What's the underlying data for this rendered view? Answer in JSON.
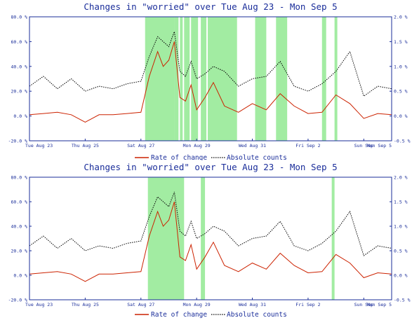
{
  "charts": [
    {
      "title": "Changes in \"worried\" over Tue Aug 23 - Mon Sep  5",
      "legend_rate": "Rate of change",
      "legend_abs": "Absolute counts",
      "x_ticks": [
        "Tue Aug 23",
        "Thu Aug 25",
        "Sat Aug 27",
        "Mon Aug 29",
        "Wed Aug 31",
        "Fri Sep  2",
        "Sun Sep",
        "Mon Sep  5"
      ],
      "y_left_ticks": [
        "80.0 %",
        "60.0 %",
        "40.0 %",
        "20.0 %",
        "0.0 %",
        "-20.0 %"
      ],
      "y_right_ticks": [
        "2.0 %",
        "1.5 %",
        "1.0 %",
        "0.5 %",
        "0.0 %",
        "-0.5 %"
      ]
    },
    {
      "title": "Changes in \"worried\" over Tue Aug 23 - Mon Sep  5",
      "legend_rate": "Rate of change",
      "legend_abs": "Absolute counts",
      "x_ticks": [
        "Tue Aug 23",
        "Thu Aug 25",
        "Sat Aug 27",
        "Mon Aug 29",
        "Wed Aug 31",
        "Fri Sep  2",
        "Sun Sep",
        "Mon Sep  5"
      ],
      "y_left_ticks": [
        "80.0 %",
        "60.0 %",
        "40.0 %",
        "20.0 %",
        "0.0 %",
        "-20.0 %"
      ],
      "y_right_ticks": [
        "2.0 %",
        "1.5 %",
        "1.0 %",
        "0.5 %",
        "0.0 %",
        "-0.5 %"
      ]
    }
  ],
  "colors": {
    "axis": "#1a2d9a",
    "rate": "#cc2200",
    "absolute": "#000000",
    "highlight": "#55dd55"
  },
  "chart_data": [
    {
      "type": "line",
      "title": "Changes in \"worried\" over Tue Aug 23 - Mon Sep  5",
      "x_range": [
        "2011-08-23",
        "2011-09-05"
      ],
      "ylim_left": [
        -20,
        80
      ],
      "ylim_right": [
        -0.5,
        2.0
      ],
      "grid": false,
      "legend": "bottom",
      "series": [
        {
          "name": "Rate of change",
          "axis": "left",
          "unit": "%",
          "x": [
            0,
            0.5,
            1,
            1.5,
            2,
            2.5,
            3,
            3.5,
            4,
            4.3,
            4.6,
            4.8,
            5,
            5.2,
            5.4,
            5.6,
            5.8,
            6,
            6.3,
            6.6,
            7,
            7.5,
            8,
            8.5,
            9,
            9.5,
            10,
            10.5,
            11,
            11.5,
            12,
            12.5,
            13
          ],
          "y": [
            1,
            2,
            3,
            1,
            -5,
            1,
            1,
            2,
            3,
            32,
            52,
            40,
            45,
            60,
            15,
            12,
            25,
            5,
            15,
            27,
            8,
            3,
            10,
            5,
            18,
            8,
            2,
            3,
            17,
            10,
            -2,
            2,
            1
          ]
        },
        {
          "name": "Absolute counts",
          "axis": "right",
          "unit": "%",
          "x": [
            0,
            0.5,
            1,
            1.5,
            2,
            2.5,
            3,
            3.5,
            4,
            4.3,
            4.6,
            4.8,
            5,
            5.2,
            5.4,
            5.6,
            5.8,
            6,
            6.3,
            6.6,
            7,
            7.5,
            8,
            8.5,
            9,
            9.5,
            10,
            10.5,
            11,
            11.5,
            12,
            12.5,
            13
          ],
          "y": [
            0.6,
            0.8,
            0.55,
            0.75,
            0.5,
            0.6,
            0.55,
            0.65,
            0.7,
            1.2,
            1.6,
            1.5,
            1.4,
            1.7,
            0.9,
            0.8,
            1.1,
            0.75,
            0.85,
            1.0,
            0.9,
            0.6,
            0.75,
            0.8,
            1.1,
            0.6,
            0.5,
            0.65,
            0.9,
            1.3,
            0.4,
            0.6,
            0.55
          ]
        }
      ],
      "highlight_bands_days": [
        [
          4.15,
          5.2
        ],
        [
          5.2,
          5.35
        ],
        [
          5.4,
          5.5
        ],
        [
          5.55,
          5.75
        ],
        [
          5.8,
          6.05
        ],
        [
          6.15,
          6.35
        ],
        [
          6.4,
          7.45
        ],
        [
          8.1,
          8.5
        ],
        [
          8.85,
          9.25
        ],
        [
          10.5,
          10.65
        ],
        [
          10.95,
          11.05
        ]
      ]
    },
    {
      "type": "line",
      "title": "Changes in \"worried\" over Tue Aug 23 - Mon Sep  5",
      "x_range": [
        "2011-08-23",
        "2011-09-05"
      ],
      "ylim_left": [
        -20,
        80
      ],
      "ylim_right": [
        -0.5,
        2.0
      ],
      "grid": false,
      "legend": "bottom",
      "series": [
        {
          "name": "Rate of change",
          "axis": "left",
          "unit": "%",
          "x": [
            0,
            0.5,
            1,
            1.5,
            2,
            2.5,
            3,
            3.5,
            4,
            4.3,
            4.6,
            4.8,
            5,
            5.2,
            5.4,
            5.6,
            5.8,
            6,
            6.3,
            6.6,
            7,
            7.5,
            8,
            8.5,
            9,
            9.5,
            10,
            10.5,
            11,
            11.5,
            12,
            12.5,
            13
          ],
          "y": [
            1,
            2,
            3,
            1,
            -5,
            1,
            1,
            2,
            3,
            32,
            52,
            40,
            45,
            60,
            15,
            12,
            25,
            5,
            15,
            27,
            8,
            3,
            10,
            5,
            18,
            8,
            2,
            3,
            17,
            10,
            -2,
            2,
            1
          ]
        },
        {
          "name": "Absolute counts",
          "axis": "right",
          "unit": "%",
          "x": [
            0,
            0.5,
            1,
            1.5,
            2,
            2.5,
            3,
            3.5,
            4,
            4.3,
            4.6,
            4.8,
            5,
            5.2,
            5.4,
            5.6,
            5.8,
            6,
            6.3,
            6.6,
            7,
            7.5,
            8,
            8.5,
            9,
            9.5,
            10,
            10.5,
            11,
            11.5,
            12,
            12.5,
            13
          ],
          "y": [
            0.6,
            0.8,
            0.55,
            0.75,
            0.5,
            0.6,
            0.55,
            0.65,
            0.7,
            1.2,
            1.6,
            1.5,
            1.4,
            1.7,
            0.9,
            0.8,
            1.1,
            0.75,
            0.85,
            1.0,
            0.9,
            0.6,
            0.75,
            0.8,
            1.1,
            0.6,
            0.5,
            0.65,
            0.9,
            1.3,
            0.4,
            0.6,
            0.55
          ]
        }
      ],
      "highlight_bands_days": [
        [
          4.25,
          5.55
        ],
        [
          6.15,
          6.3
        ],
        [
          10.85,
          10.95
        ]
      ]
    }
  ]
}
